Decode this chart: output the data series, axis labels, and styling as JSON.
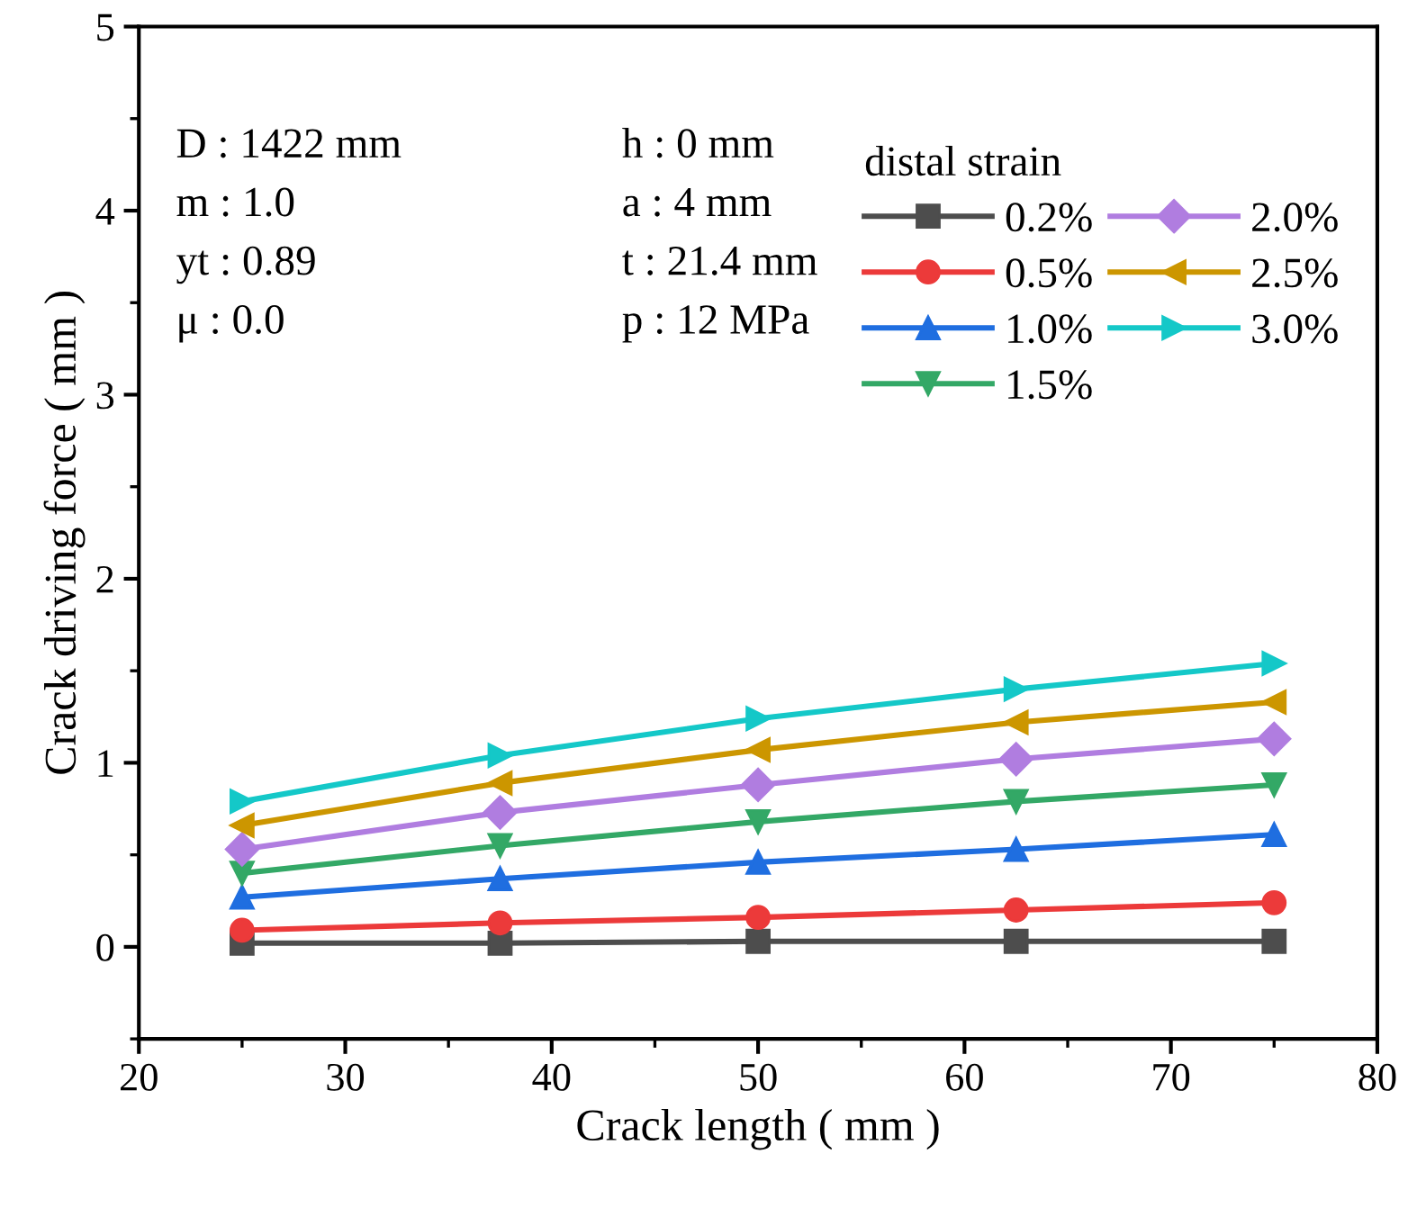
{
  "chart_data": {
    "type": "line",
    "xlabel": "Crack length ( mm )",
    "ylabel": "Crack driving force ( mm )",
    "legend_title": "distal strain",
    "x": [
      25,
      37.5,
      50,
      62.5,
      75
    ],
    "series": [
      {
        "name": "0.2%",
        "color": "#4d4d4d",
        "marker": "square",
        "values": [
          0.02,
          0.02,
          0.03,
          0.03,
          0.03
        ]
      },
      {
        "name": "0.5%",
        "color": "#ec3a3a",
        "marker": "circle",
        "values": [
          0.09,
          0.13,
          0.16,
          0.2,
          0.24
        ]
      },
      {
        "name": "1.0%",
        "color": "#1f6ee0",
        "marker": "triangle",
        "values": [
          0.27,
          0.37,
          0.46,
          0.53,
          0.61
        ]
      },
      {
        "name": "1.5%",
        "color": "#33a866",
        "marker": "triangle_down",
        "values": [
          0.4,
          0.55,
          0.68,
          0.79,
          0.88
        ]
      },
      {
        "name": "2.0%",
        "color": "#b07de0",
        "marker": "diamond",
        "values": [
          0.53,
          0.73,
          0.88,
          1.02,
          1.13
        ]
      },
      {
        "name": "2.5%",
        "color": "#cc9600",
        "marker": "triangle_left",
        "values": [
          0.66,
          0.89,
          1.07,
          1.22,
          1.33
        ]
      },
      {
        "name": "3.0%",
        "color": "#14c8c8",
        "marker": "triangle_right",
        "values": [
          0.79,
          1.04,
          1.24,
          1.4,
          1.54
        ]
      }
    ],
    "xlim": [
      20,
      80
    ],
    "xticks": [
      20,
      30,
      40,
      50,
      60,
      70,
      80
    ],
    "ylim": [
      -0.5,
      5
    ],
    "yticks": [
      0,
      1,
      2,
      3,
      4,
      5
    ],
    "legend": "top right",
    "grid": false,
    "line_style": "solid",
    "annotations": [
      "D : 1422 mm",
      "m : 1.0",
      "yt : 0.89",
      "μ : 0.0",
      "h : 0 mm",
      "a : 4 mm",
      "t : 21.4 mm",
      "p : 12 MPa"
    ]
  }
}
